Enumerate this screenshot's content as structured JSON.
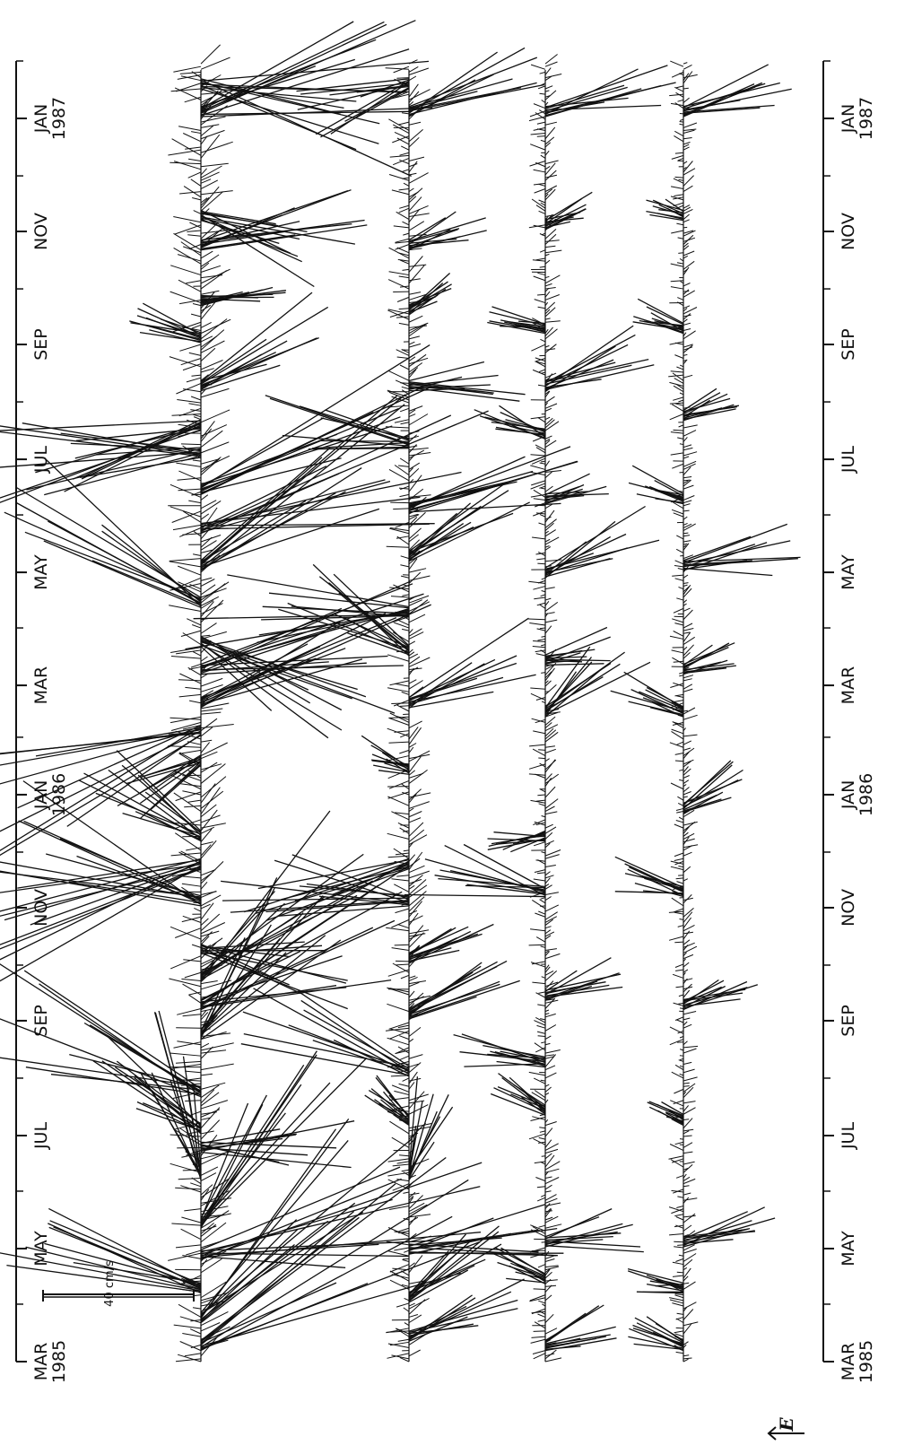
{
  "chart_data": {
    "type": "stick_plot",
    "time_range": [
      "1985-03-01",
      "1987-02-01"
    ],
    "axis_ticks": [
      {
        "date": "1985-03-01",
        "month": "MAR",
        "year": "1985"
      },
      {
        "date": "1985-05-01",
        "month": "MAY",
        "year": ""
      },
      {
        "date": "1985-07-01",
        "month": "JUL",
        "year": ""
      },
      {
        "date": "1985-09-01",
        "month": "SEP",
        "year": ""
      },
      {
        "date": "1985-11-01",
        "month": "NOV",
        "year": ""
      },
      {
        "date": "1986-01-01",
        "month": "JAN",
        "year": "1986"
      },
      {
        "date": "1986-03-01",
        "month": "MAR",
        "year": ""
      },
      {
        "date": "1986-05-01",
        "month": "MAY",
        "year": ""
      },
      {
        "date": "1986-07-01",
        "month": "JUL",
        "year": ""
      },
      {
        "date": "1986-09-01",
        "month": "SEP",
        "year": ""
      },
      {
        "date": "1986-11-01",
        "month": "NOV",
        "year": ""
      },
      {
        "date": "1987-01-01",
        "month": "JAN",
        "year": "1987"
      }
    ],
    "scale_bar": {
      "value": 40,
      "unit": "cm/s",
      "label": "40 cm/s"
    },
    "direction_label": "E",
    "series": [
      {
        "activity": 1.0,
        "episodes": [
          {
            "date": "1985-03-10",
            "speed_cm_s": 80,
            "dir_deg": 120
          },
          {
            "date": "1985-03-25",
            "speed_cm_s": 70,
            "dir_deg": 135
          },
          {
            "date": "1985-04-10",
            "speed_cm_s": 55,
            "dir_deg": 250
          },
          {
            "date": "1985-04-28",
            "speed_cm_s": 85,
            "dir_deg": 100
          },
          {
            "date": "1985-05-15",
            "speed_cm_s": 60,
            "dir_deg": 150
          },
          {
            "date": "1985-06-10",
            "speed_cm_s": 45,
            "dir_deg": 200
          },
          {
            "date": "1985-06-25",
            "speed_cm_s": 40,
            "dir_deg": 90
          },
          {
            "date": "1985-07-05",
            "speed_cm_s": 35,
            "dir_deg": 240
          },
          {
            "date": "1985-07-25",
            "speed_cm_s": 65,
            "dir_deg": 250
          },
          {
            "date": "1985-08-25",
            "speed_cm_s": 50,
            "dir_deg": 140
          },
          {
            "date": "1985-09-10",
            "speed_cm_s": 60,
            "dir_deg": 110
          },
          {
            "date": "1985-09-25",
            "speed_cm_s": 55,
            "dir_deg": 130
          },
          {
            "date": "1985-10-10",
            "speed_cm_s": 45,
            "dir_deg": 80
          },
          {
            "date": "1985-11-05",
            "speed_cm_s": 75,
            "dir_deg": 250
          },
          {
            "date": "1985-11-25",
            "speed_cm_s": 80,
            "dir_deg": 290
          },
          {
            "date": "1985-12-10",
            "speed_cm_s": 35,
            "dir_deg": 240
          },
          {
            "date": "1986-01-20",
            "speed_cm_s": 25,
            "dir_deg": 300
          },
          {
            "date": "1986-02-05",
            "speed_cm_s": 90,
            "dir_deg": 290
          },
          {
            "date": "1986-02-20",
            "speed_cm_s": 70,
            "dir_deg": 115
          },
          {
            "date": "1986-03-10",
            "speed_cm_s": 60,
            "dir_deg": 100
          },
          {
            "date": "1986-03-25",
            "speed_cm_s": 55,
            "dir_deg": 60
          },
          {
            "date": "1986-04-15",
            "speed_cm_s": 60,
            "dir_deg": 240
          },
          {
            "date": "1986-05-05",
            "speed_cm_s": 70,
            "dir_deg": 120
          },
          {
            "date": "1986-05-25",
            "speed_cm_s": 80,
            "dir_deg": 105
          },
          {
            "date": "1986-06-15",
            "speed_cm_s": 75,
            "dir_deg": 115
          },
          {
            "date": "1986-07-05",
            "speed_cm_s": 60,
            "dir_deg": 270
          },
          {
            "date": "1986-07-20",
            "speed_cm_s": 70,
            "dir_deg": 285
          },
          {
            "date": "1986-08-10",
            "speed_cm_s": 40,
            "dir_deg": 115
          },
          {
            "date": "1986-09-05",
            "speed_cm_s": 20,
            "dir_deg": 250
          },
          {
            "date": "1986-09-25",
            "speed_cm_s": 25,
            "dir_deg": 100
          },
          {
            "date": "1986-10-25",
            "speed_cm_s": 45,
            "dir_deg": 110
          },
          {
            "date": "1986-11-10",
            "speed_cm_s": 40,
            "dir_deg": 70
          },
          {
            "date": "1987-01-05",
            "speed_cm_s": 60,
            "dir_deg": 105
          },
          {
            "date": "1987-01-20",
            "speed_cm_s": 80,
            "dir_deg": 80
          }
        ]
      },
      {
        "activity": 0.7,
        "episodes": [
          {
            "date": "1985-03-15",
            "speed_cm_s": 35,
            "dir_deg": 110
          },
          {
            "date": "1985-04-05",
            "speed_cm_s": 30,
            "dir_deg": 125
          },
          {
            "date": "1985-05-01",
            "speed_cm_s": 40,
            "dir_deg": 100
          },
          {
            "date": "1985-06-10",
            "speed_cm_s": 25,
            "dir_deg": 160
          },
          {
            "date": "1985-07-10",
            "speed_cm_s": 15,
            "dir_deg": 230
          },
          {
            "date": "1985-08-05",
            "speed_cm_s": 45,
            "dir_deg": 250
          },
          {
            "date": "1985-09-05",
            "speed_cm_s": 30,
            "dir_deg": 115
          },
          {
            "date": "1985-10-05",
            "speed_cm_s": 25,
            "dir_deg": 110
          },
          {
            "date": "1985-11-05",
            "speed_cm_s": 50,
            "dir_deg": 260
          },
          {
            "date": "1985-11-25",
            "speed_cm_s": 45,
            "dir_deg": 290
          },
          {
            "date": "1986-01-15",
            "speed_cm_s": 15,
            "dir_deg": 250
          },
          {
            "date": "1986-02-20",
            "speed_cm_s": 40,
            "dir_deg": 110
          },
          {
            "date": "1986-03-20",
            "speed_cm_s": 35,
            "dir_deg": 240
          },
          {
            "date": "1986-04-10",
            "speed_cm_s": 60,
            "dir_deg": 275
          },
          {
            "date": "1986-05-10",
            "speed_cm_s": 35,
            "dir_deg": 120
          },
          {
            "date": "1986-06-05",
            "speed_cm_s": 50,
            "dir_deg": 105
          },
          {
            "date": "1986-07-10",
            "speed_cm_s": 45,
            "dir_deg": 260
          },
          {
            "date": "1986-08-10",
            "speed_cm_s": 30,
            "dir_deg": 95
          },
          {
            "date": "1986-09-20",
            "speed_cm_s": 15,
            "dir_deg": 120
          },
          {
            "date": "1986-10-25",
            "speed_cm_s": 25,
            "dir_deg": 110
          },
          {
            "date": "1987-01-05",
            "speed_cm_s": 35,
            "dir_deg": 110
          },
          {
            "date": "1987-01-20",
            "speed_cm_s": 30,
            "dir_deg": 290
          }
        ]
      },
      {
        "activity": 0.5,
        "episodes": [
          {
            "date": "1985-03-10",
            "speed_cm_s": 20,
            "dir_deg": 110
          },
          {
            "date": "1985-04-15",
            "speed_cm_s": 15,
            "dir_deg": 250
          },
          {
            "date": "1985-05-05",
            "speed_cm_s": 25,
            "dir_deg": 100
          },
          {
            "date": "1985-07-15",
            "speed_cm_s": 15,
            "dir_deg": 240
          },
          {
            "date": "1985-08-10",
            "speed_cm_s": 25,
            "dir_deg": 260
          },
          {
            "date": "1985-09-15",
            "speed_cm_s": 20,
            "dir_deg": 110
          },
          {
            "date": "1985-11-10",
            "speed_cm_s": 40,
            "dir_deg": 255
          },
          {
            "date": "1985-12-10",
            "speed_cm_s": 20,
            "dir_deg": 280
          },
          {
            "date": "1986-02-15",
            "speed_cm_s": 30,
            "dir_deg": 130
          },
          {
            "date": "1986-03-15",
            "speed_cm_s": 20,
            "dir_deg": 100
          },
          {
            "date": "1986-05-01",
            "speed_cm_s": 30,
            "dir_deg": 115
          },
          {
            "date": "1986-06-10",
            "speed_cm_s": 20,
            "dir_deg": 105
          },
          {
            "date": "1986-07-15",
            "speed_cm_s": 20,
            "dir_deg": 250
          },
          {
            "date": "1986-08-10",
            "speed_cm_s": 30,
            "dir_deg": 110
          },
          {
            "date": "1986-09-10",
            "speed_cm_s": 15,
            "dir_deg": 260
          },
          {
            "date": "1986-11-05",
            "speed_cm_s": 15,
            "dir_deg": 110
          },
          {
            "date": "1987-01-05",
            "speed_cm_s": 35,
            "dir_deg": 105
          }
        ]
      },
      {
        "activity": 0.45,
        "episodes": [
          {
            "date": "1985-03-10",
            "speed_cm_s": 15,
            "dir_deg": 250
          },
          {
            "date": "1985-04-10",
            "speed_cm_s": 15,
            "dir_deg": 260
          },
          {
            "date": "1985-05-05",
            "speed_cm_s": 25,
            "dir_deg": 105
          },
          {
            "date": "1985-07-10",
            "speed_cm_s": 10,
            "dir_deg": 250
          },
          {
            "date": "1985-09-10",
            "speed_cm_s": 20,
            "dir_deg": 110
          },
          {
            "date": "1985-11-10",
            "speed_cm_s": 20,
            "dir_deg": 255
          },
          {
            "date": "1985-12-25",
            "speed_cm_s": 20,
            "dir_deg": 120
          },
          {
            "date": "1986-02-15",
            "speed_cm_s": 20,
            "dir_deg": 245
          },
          {
            "date": "1986-03-10",
            "speed_cm_s": 15,
            "dir_deg": 110
          },
          {
            "date": "1986-05-05",
            "speed_cm_s": 30,
            "dir_deg": 100
          },
          {
            "date": "1986-06-10",
            "speed_cm_s": 15,
            "dir_deg": 250
          },
          {
            "date": "1986-07-25",
            "speed_cm_s": 15,
            "dir_deg": 110
          },
          {
            "date": "1986-09-10",
            "speed_cm_s": 15,
            "dir_deg": 255
          },
          {
            "date": "1986-11-10",
            "speed_cm_s": 10,
            "dir_deg": 250
          },
          {
            "date": "1987-01-05",
            "speed_cm_s": 30,
            "dir_deg": 105
          }
        ]
      }
    ]
  }
}
